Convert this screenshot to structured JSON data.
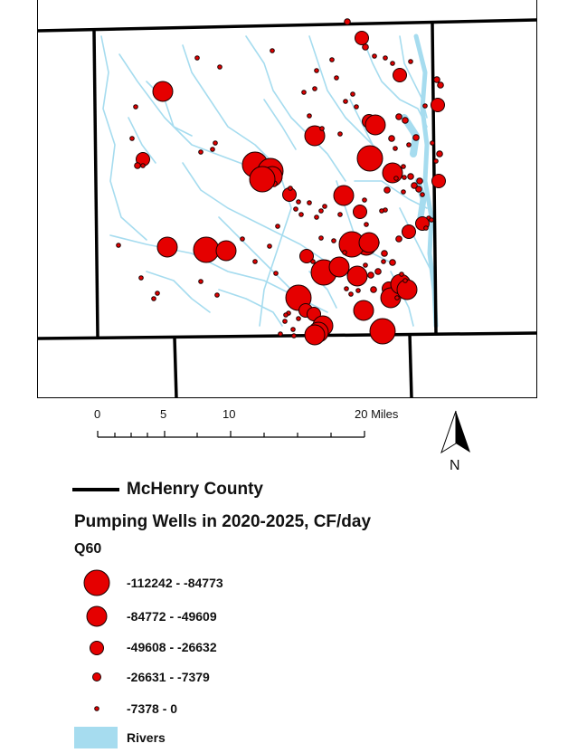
{
  "map": {
    "colors": {
      "county_line": "#000000",
      "well_fill": "#e50000",
      "well_stroke": "#1a0000",
      "river": "#a6dcef"
    }
  },
  "scale_bar": {
    "ticks": [
      "0",
      "5",
      "10",
      "20 Miles"
    ]
  },
  "north_arrow": {
    "label": "N"
  },
  "legend": {
    "county_label": "McHenry County",
    "wells_title": "Pumping Wells in 2020-2025,  CF/day",
    "field_name": "Q60",
    "classes": [
      {
        "label": "-112242 - -84773",
        "size_class": 5
      },
      {
        "label": "-84772 - -49609",
        "size_class": 4
      },
      {
        "label": "-49608 - -26632",
        "size_class": 3
      },
      {
        "label": "-26631 - -7379",
        "size_class": 2
      },
      {
        "label": "-7378 - 0",
        "size_class": 1
      }
    ],
    "rivers_label": "Rivers"
  }
}
